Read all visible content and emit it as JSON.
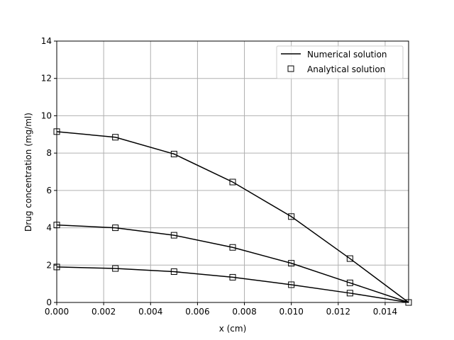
{
  "chart_data": {
    "type": "line",
    "title": "",
    "xlabel": "x (cm)",
    "ylabel": "Drug concentration (mg/ml)",
    "xlim": [
      0,
      0.015
    ],
    "ylim": [
      0,
      14
    ],
    "x_ticks": [
      "0.000",
      "0.002",
      "0.004",
      "0.006",
      "0.008",
      "0.010",
      "0.012",
      "0.014"
    ],
    "y_ticks": [
      "0",
      "2",
      "4",
      "6",
      "8",
      "10",
      "12",
      "14"
    ],
    "grid": true,
    "legend_position": "top-right",
    "legend": [
      {
        "label": "Numerical solution",
        "marker": "line"
      },
      {
        "label": "Analytical solution",
        "marker": "square"
      }
    ],
    "x": [
      0.0,
      0.0025,
      0.005,
      0.0075,
      0.01,
      0.0125,
      0.015
    ],
    "series": [
      {
        "numerical": [
          9.15,
          8.85,
          7.95,
          6.45,
          4.6,
          2.35,
          0.0
        ],
        "analytical": [
          9.15,
          8.85,
          7.95,
          6.45,
          4.6,
          2.35,
          0.0
        ]
      },
      {
        "numerical": [
          4.15,
          4.0,
          3.6,
          2.95,
          2.1,
          1.05,
          0.0
        ],
        "analytical": [
          4.15,
          4.0,
          3.6,
          2.95,
          2.1,
          1.05,
          0.0
        ]
      },
      {
        "numerical": [
          1.9,
          1.82,
          1.65,
          1.35,
          0.95,
          0.5,
          0.0
        ],
        "analytical": [
          1.9,
          1.82,
          1.65,
          1.35,
          0.95,
          0.5,
          0.0
        ]
      }
    ],
    "colors": {
      "line": "#000000",
      "grid": "#b0b0b0",
      "marker_face": "none"
    }
  }
}
